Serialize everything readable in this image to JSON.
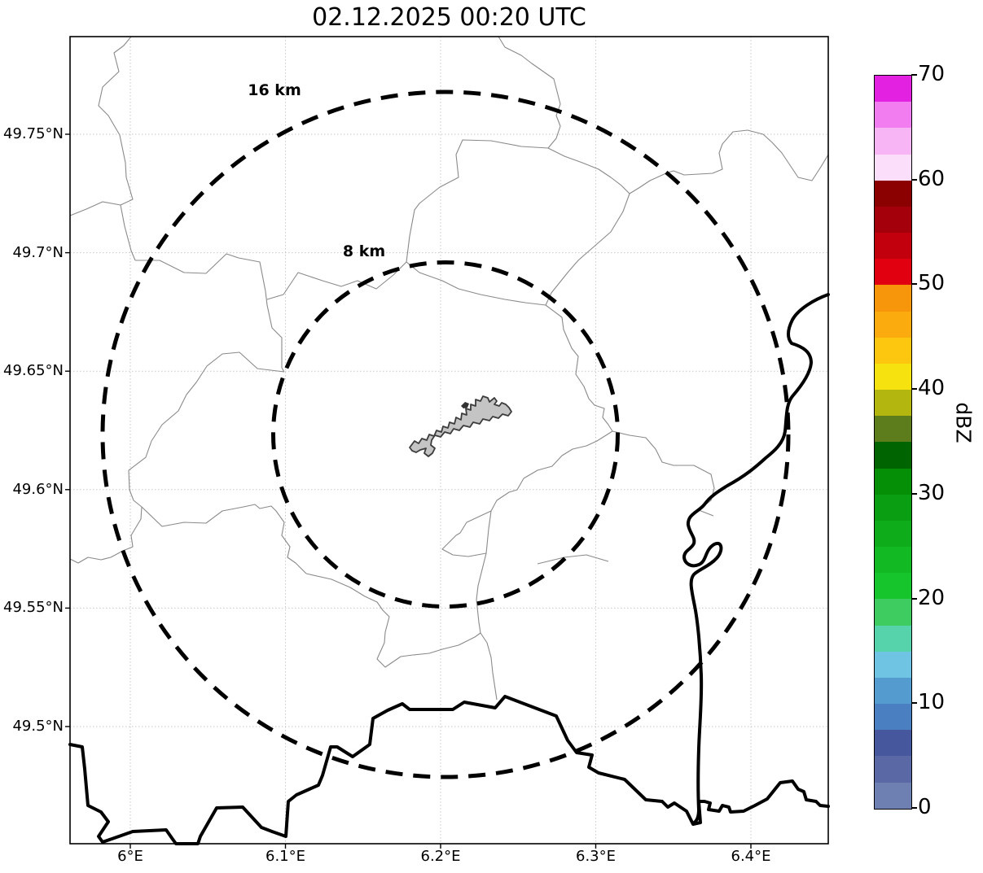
{
  "title": "02.12.2025 00:20 UTC",
  "axes": {
    "x_ticks": [
      "6°E",
      "6.1°E",
      "6.2°E",
      "6.3°E",
      "6.4°E"
    ],
    "y_ticks": [
      "49.75°N",
      "49.7°N",
      "49.65°N",
      "49.6°N",
      "49.55°N",
      "49.5°N"
    ]
  },
  "range_rings": {
    "outer_label": "16 km",
    "inner_label": "8 km"
  },
  "colorbar": {
    "label": "dBZ",
    "tick_labels": [
      "70",
      "60",
      "50",
      "40",
      "30",
      "20",
      "10",
      "0"
    ],
    "tick_values": [
      70,
      60,
      50,
      40,
      30,
      20,
      10,
      0
    ],
    "min": 0,
    "max": 70,
    "segment_colors_bottom_to_top": [
      "#6e7fb1",
      "#5a68a6",
      "#46579d",
      "#4a7fc1",
      "#549bd0",
      "#6fc4e4",
      "#57d3ab",
      "#3ecb5f",
      "#16c52c",
      "#12b922",
      "#0eac1a",
      "#0a9e12",
      "#048f06",
      "#006400",
      "#5d7d1c",
      "#b3b60e",
      "#f6e20f",
      "#fcc70e",
      "#fbab0d",
      "#f8960b",
      "#e1000f",
      "#c2000d",
      "#a3000b",
      "#8b0000",
      "#fbdffa",
      "#f8b5f6",
      "#f27df0",
      "#e322e1"
    ]
  },
  "map_colors": {
    "country_border": "#000000",
    "admin_boundary": "#8a8a8a",
    "grid_line": "#c8c8c8",
    "city_fill": "#c4c4c4",
    "city_outline": "#3c3c3c"
  },
  "chart_data": {
    "type": "heatmap",
    "title": "02.12.2025 00:20 UTC",
    "xlabel": "",
    "ylabel": "",
    "x_tick_labels": [
      "6°E",
      "6.1°E",
      "6.2°E",
      "6.3°E",
      "6.4°E"
    ],
    "y_tick_labels": [
      "49.75°N",
      "49.7°N",
      "49.65°N",
      "49.6°N",
      "49.55°N",
      "49.5°N"
    ],
    "xlim_deg_east": [
      5.961,
      6.45
    ],
    "ylim_deg_north": [
      49.451,
      49.791
    ],
    "values": "no reflectivity echoes visible — radar map is empty at this time step",
    "colorbar": {
      "label": "dBZ",
      "min": 0,
      "max": 70,
      "tick_step": 10,
      "n_segments": 28
    },
    "range_rings_km": [
      8,
      16
    ],
    "ring_center_approx": {
      "lon_deg_east": 6.2,
      "lat_deg_north": 49.62
    },
    "grid": true,
    "legend": "none"
  }
}
